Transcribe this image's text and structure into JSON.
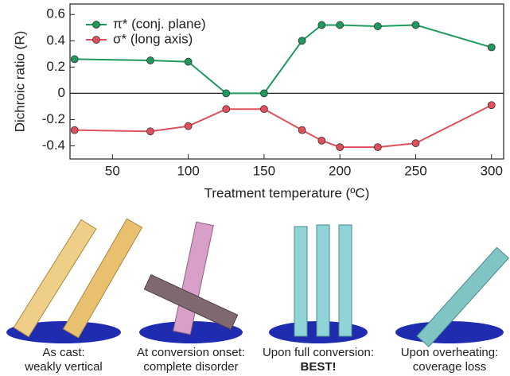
{
  "chart_data": {
    "type": "line",
    "x_label": "Treatment temperature (ºC)",
    "y_label": "Dichroic ratio (R)",
    "x": [
      25,
      75,
      100,
      125,
      150,
      175,
      188,
      200,
      225,
      250,
      300
    ],
    "series": [
      {
        "name": "π* (conj. plane)",
        "color": "#1f9a5c",
        "values": [
          0.26,
          0.25,
          0.24,
          0,
          0,
          0.4,
          0.52,
          0.52,
          0.51,
          0.52,
          0.35
        ]
      },
      {
        "name": "σ* (long axis)",
        "color": "#e0505c",
        "values": [
          -0.28,
          -0.29,
          -0.25,
          -0.12,
          -0.12,
          -0.28,
          -0.36,
          -0.41,
          -0.41,
          -0.38,
          -0.09
        ]
      }
    ],
    "xlim": [
      22,
      308
    ],
    "ylim": [
      -0.5,
      0.68
    ],
    "xticks": [
      50,
      100,
      150,
      200,
      250,
      300
    ],
    "yticks": [
      -0.4,
      -0.2,
      0,
      0.2,
      0.4,
      0.6
    ],
    "legend": "upper-left"
  },
  "illustrations": [
    {
      "line1": "As cast:",
      "line2": "weakly vertical"
    },
    {
      "line1": "At conversion onset:",
      "line2": "complete disorder"
    },
    {
      "line1": "Upon full conversion:",
      "line2": "BEST!"
    },
    {
      "line1": "Upon overheating:",
      "line2": "coverage loss"
    }
  ]
}
